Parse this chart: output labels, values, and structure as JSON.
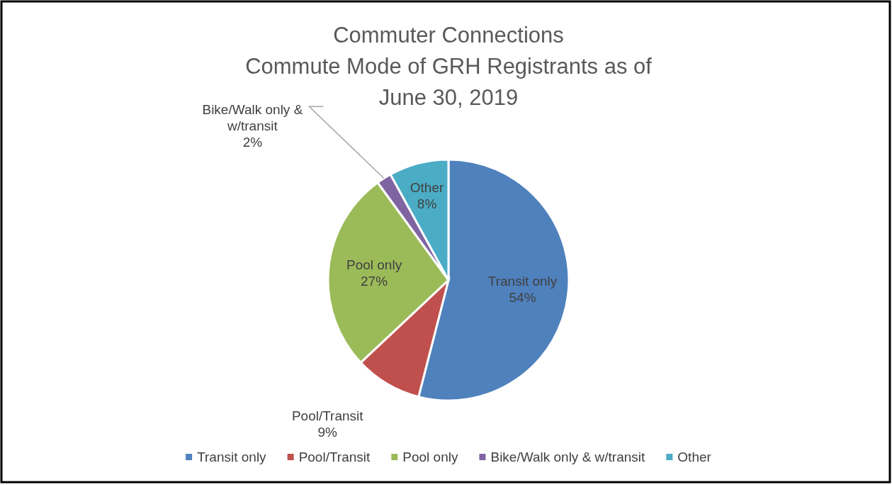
{
  "chart_data": {
    "type": "pie",
    "title": "Commuter Connections\nCommute Mode of GRH Registrants as of\nJune 30, 2019",
    "categories": [
      "Transit only",
      "Pool/Transit",
      "Pool only",
      "Bike/Walk only & w/transit",
      "Other"
    ],
    "values": [
      54,
      9,
      27,
      2,
      8
    ],
    "colors": [
      "#4f81bd",
      "#c0504d",
      "#9bbb59",
      "#8064a2",
      "#4bacc6"
    ],
    "value_labels": [
      "54%",
      "9%",
      "27%",
      "2%",
      "8%"
    ],
    "legend": "bottom"
  }
}
